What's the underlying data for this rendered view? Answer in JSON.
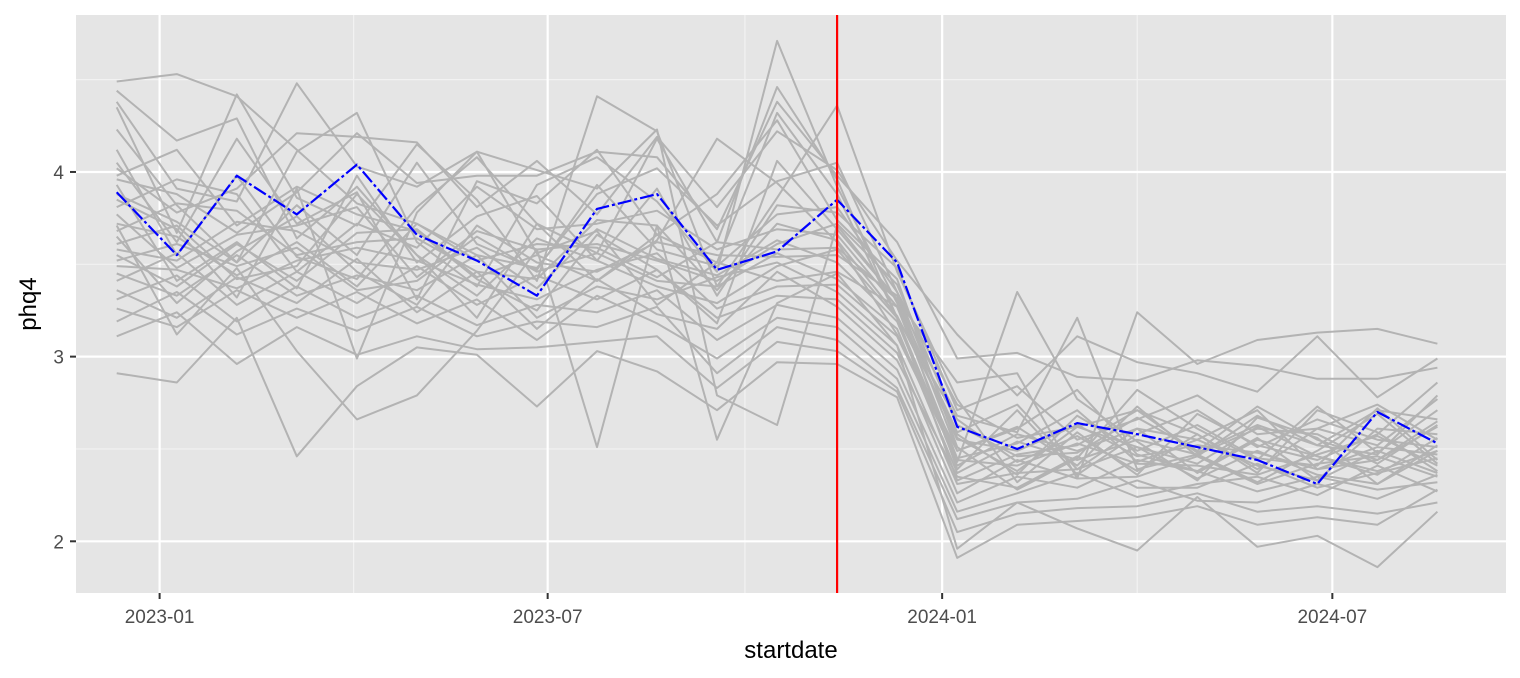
{
  "chart_data": {
    "type": "line",
    "title": "",
    "xlabel": "startdate",
    "ylabel": "phq4",
    "x_tick_labels": [
      "2023-01",
      "2023-07",
      "2024-01",
      "2024-07"
    ],
    "x_tick_dates": [
      "2023-01-01",
      "2023-07-01",
      "2024-01-01",
      "2024-07-01"
    ],
    "y_ticks": [
      2,
      3,
      4
    ],
    "ylim": [
      1.72,
      4.85
    ],
    "xlim": [
      "2022-11-23",
      "2024-09-20"
    ],
    "grid": true,
    "x": [
      "2022-12-12",
      "2023-01-09",
      "2023-02-06",
      "2023-03-06",
      "2023-04-03",
      "2023-05-01",
      "2023-05-29",
      "2023-06-26",
      "2023-07-24",
      "2023-08-21",
      "2023-09-18",
      "2023-10-16",
      "2023-11-13",
      "2023-12-11",
      "2024-01-08",
      "2024-02-05",
      "2024-03-04",
      "2024-04-01",
      "2024-04-29",
      "2024-05-27",
      "2024-06-24",
      "2024-07-22",
      "2024-08-19"
    ],
    "mean_series": {
      "name": "mean",
      "color": "#0000ff",
      "linestyle": "dashdot",
      "values": [
        3.89,
        3.55,
        3.98,
        3.77,
        4.04,
        3.66,
        3.52,
        3.33,
        3.8,
        3.88,
        3.47,
        3.57,
        3.85,
        3.51,
        2.62,
        2.5,
        2.64,
        2.58,
        2.51,
        2.44,
        2.31,
        2.7,
        2.53
      ]
    },
    "individual_series_color": "#b3b3b3",
    "individual_series": [
      [
        4.49,
        4.53,
        4.41,
        4.12,
        3.83,
        3.72,
        3.55,
        3.48,
        3.88,
        4.02,
        3.71,
        3.95,
        4.05,
        3.35,
        2.74,
        2.56,
        2.62,
        2.71,
        2.48,
        2.63,
        2.52,
        2.71,
        2.66
      ],
      [
        4.44,
        4.17,
        4.29,
        3.64,
        3.92,
        3.55,
        3.21,
        3.72,
        3.41,
        3.63,
        4.18,
        3.94,
        3.62,
        3.12,
        2.49,
        2.61,
        2.82,
        2.47,
        2.38,
        2.56,
        2.33,
        2.49,
        2.37
      ],
      [
        4.38,
        3.91,
        3.84,
        4.48,
        4.03,
        3.92,
        4.11,
        3.56,
        3.68,
        3.28,
        3.51,
        4.32,
        3.88,
        3.21,
        2.33,
        2.47,
        2.52,
        2.71,
        2.58,
        2.39,
        2.61,
        2.74,
        2.55
      ],
      [
        4.35,
        3.67,
        4.42,
        3.86,
        3.71,
        4.15,
        3.85,
        3.41,
        4.41,
        4.22,
        3.38,
        3.86,
        4.36,
        3.46,
        2.77,
        2.32,
        2.59,
        2.36,
        2.69,
        2.52,
        2.44,
        2.58,
        2.86
      ],
      [
        4.23,
        3.82,
        3.51,
        4.11,
        4.32,
        3.62,
        3.38,
        3.93,
        4.08,
        3.84,
        3.46,
        4.71,
        3.92,
        3.29,
        2.59,
        2.74,
        2.39,
        2.61,
        2.55,
        2.71,
        2.39,
        2.44,
        2.62
      ],
      [
        4.12,
        3.55,
        3.98,
        3.54,
        3.42,
        3.81,
        4.08,
        3.72,
        3.56,
        4.18,
        3.62,
        4.46,
        3.96,
        3.21,
        2.43,
        3.35,
        2.77,
        2.54,
        2.33,
        2.67,
        2.56,
        2.31,
        2.49
      ],
      [
        4.05,
        3.62,
        4.18,
        3.72,
        3.89,
        3.31,
        3.95,
        3.83,
        4.12,
        3.66,
        3.88,
        4.28,
        3.74,
        3.42,
        2.51,
        2.28,
        2.45,
        2.82,
        2.61,
        2.44,
        2.73,
        2.48,
        2.71
      ],
      [
        3.98,
        4.12,
        3.71,
        3.92,
        3.77,
        3.68,
        3.42,
        3.25,
        3.66,
        3.47,
        3.18,
        4.06,
        3.69,
        3.31,
        2.68,
        2.59,
        3.21,
        2.39,
        2.47,
        2.32,
        2.49,
        2.69,
        2.42
      ],
      [
        3.93,
        3.41,
        3.62,
        3.37,
        3.98,
        3.51,
        3.76,
        3.87,
        3.52,
        3.91,
        3.33,
        3.82,
        3.78,
        3.48,
        2.71,
        2.84,
        2.55,
        2.66,
        2.79,
        2.58,
        2.61,
        2.52,
        2.77
      ],
      [
        3.88,
        3.73,
        3.51,
        3.82,
        3.55,
        4.05,
        3.61,
        3.47,
        3.93,
        3.58,
        3.49,
        3.77,
        3.81,
        3.35,
        2.56,
        2.38,
        2.62,
        2.51,
        2.42,
        2.62,
        2.46,
        2.38,
        2.49
      ],
      [
        3.81,
        3.96,
        3.88,
        3.46,
        3.72,
        3.59,
        3.92,
        3.69,
        3.72,
        3.79,
        3.58,
        3.69,
        3.66,
        3.27,
        2.45,
        2.53,
        2.71,
        2.43,
        2.55,
        2.41,
        2.33,
        2.61,
        2.58
      ],
      [
        3.77,
        3.48,
        3.66,
        3.71,
        3.81,
        3.43,
        3.68,
        3.58,
        3.61,
        3.52,
        3.41,
        3.61,
        3.72,
        3.39,
        2.63,
        2.46,
        2.48,
        2.67,
        2.49,
        2.73,
        2.55,
        2.44,
        2.65
      ],
      [
        3.72,
        3.65,
        3.44,
        3.62,
        3.38,
        3.72,
        3.52,
        3.61,
        3.59,
        3.43,
        3.62,
        3.58,
        3.59,
        3.31,
        2.39,
        2.71,
        2.36,
        2.58,
        2.71,
        2.51,
        2.66,
        2.55,
        2.51
      ],
      [
        3.68,
        3.83,
        3.79,
        3.55,
        3.62,
        3.64,
        3.46,
        3.42,
        3.74,
        3.71,
        3.36,
        3.72,
        3.63,
        3.22,
        2.58,
        2.36,
        2.68,
        2.49,
        2.63,
        2.45,
        2.41,
        2.72,
        2.44
      ],
      [
        3.65,
        3.29,
        3.57,
        3.76,
        3.46,
        3.28,
        3.71,
        3.51,
        3.46,
        3.62,
        3.55,
        3.54,
        3.55,
        3.33,
        2.49,
        2.62,
        2.41,
        2.73,
        2.46,
        2.68,
        2.52,
        2.47,
        2.79
      ],
      [
        3.61,
        3.71,
        3.42,
        3.49,
        3.88,
        3.55,
        3.33,
        3.64,
        3.52,
        3.38,
        3.29,
        3.49,
        3.58,
        3.21,
        2.66,
        2.43,
        2.57,
        2.38,
        2.58,
        2.37,
        2.71,
        2.59,
        2.38
      ],
      [
        3.58,
        3.52,
        3.73,
        3.68,
        3.51,
        3.47,
        3.59,
        3.37,
        3.69,
        3.53,
        3.44,
        3.63,
        3.51,
        3.19,
        2.41,
        2.58,
        2.49,
        2.61,
        2.37,
        2.55,
        2.46,
        2.36,
        2.56
      ],
      [
        3.55,
        3.38,
        3.61,
        3.41,
        3.67,
        3.69,
        3.43,
        3.55,
        3.41,
        3.66,
        3.51,
        3.41,
        3.46,
        3.27,
        2.55,
        2.49,
        2.63,
        2.46,
        2.52,
        2.48,
        2.39,
        2.51,
        2.47
      ],
      [
        3.52,
        3.61,
        3.49,
        3.59,
        3.36,
        3.41,
        3.65,
        3.46,
        3.56,
        3.41,
        3.38,
        3.56,
        3.42,
        3.15,
        2.37,
        2.54,
        2.44,
        2.55,
        2.47,
        2.61,
        2.58,
        2.42,
        2.63
      ],
      [
        3.49,
        3.47,
        3.37,
        3.52,
        3.59,
        3.52,
        3.39,
        3.31,
        3.47,
        3.56,
        3.26,
        3.38,
        3.39,
        3.11,
        2.44,
        2.41,
        2.53,
        2.42,
        2.41,
        2.36,
        2.47,
        2.57,
        2.41
      ],
      [
        3.45,
        3.33,
        3.55,
        3.33,
        3.44,
        3.36,
        3.55,
        3.21,
        3.38,
        3.31,
        3.43,
        3.51,
        3.35,
        3.06,
        2.31,
        2.37,
        2.39,
        2.51,
        2.34,
        2.49,
        2.36,
        2.31,
        2.52
      ],
      [
        3.41,
        3.56,
        3.28,
        3.46,
        3.29,
        3.49,
        3.28,
        3.44,
        3.31,
        3.47,
        3.21,
        3.33,
        3.31,
        3.02,
        2.26,
        2.44,
        2.34,
        2.35,
        2.46,
        2.31,
        2.42,
        2.46,
        2.35
      ],
      [
        3.36,
        3.21,
        3.43,
        3.29,
        3.53,
        3.24,
        3.46,
        3.15,
        3.42,
        3.23,
        3.15,
        3.46,
        3.27,
        2.98,
        2.35,
        2.29,
        2.46,
        2.29,
        2.29,
        2.42,
        2.29,
        2.37,
        2.45
      ],
      [
        3.31,
        3.44,
        3.19,
        3.38,
        3.21,
        3.33,
        3.17,
        3.28,
        3.24,
        3.36,
        3.09,
        3.28,
        3.21,
        2.93,
        2.21,
        2.35,
        2.29,
        2.44,
        2.38,
        2.27,
        2.35,
        2.28,
        2.32
      ],
      [
        3.26,
        3.16,
        3.36,
        3.21,
        3.35,
        3.18,
        3.31,
        3.09,
        3.33,
        3.18,
        2.99,
        3.21,
        3.16,
        2.88,
        2.16,
        2.26,
        2.37,
        2.24,
        2.31,
        2.35,
        2.25,
        2.41,
        2.27
      ],
      [
        3.19,
        3.35,
        3.12,
        3.26,
        3.14,
        3.27,
        3.11,
        3.19,
        3.16,
        3.27,
        2.91,
        3.16,
        3.09,
        2.83,
        2.12,
        2.21,
        2.23,
        2.33,
        2.22,
        2.21,
        2.31,
        2.23,
        2.36
      ],
      [
        3.11,
        3.24,
        2.96,
        3.16,
        3.01,
        3.11,
        3.04,
        3.05,
        3.08,
        3.11,
        2.83,
        3.08,
        3.03,
        2.81,
        2.05,
        2.15,
        2.18,
        2.19,
        2.26,
        2.16,
        2.19,
        2.15,
        2.21
      ],
      [
        2.91,
        2.86,
        3.21,
        2.46,
        2.84,
        3.05,
        3.01,
        2.73,
        3.03,
        2.92,
        2.71,
        2.97,
        2.96,
        2.78,
        1.91,
        2.09,
        2.11,
        2.13,
        2.19,
        2.09,
        2.13,
        2.09,
        2.28
      ],
      [
        3.71,
        3.12,
        3.48,
        3.03,
        2.66,
        2.79,
        3.14,
        3.58,
        2.51,
        3.71,
        2.55,
        3.29,
        3.45,
        3.06,
        1.96,
        2.21,
        2.07,
        1.95,
        2.24,
        1.97,
        2.03,
        1.86,
        2.16
      ],
      [
        3.85,
        3.69,
        3.32,
        3.91,
        2.99,
        3.78,
        4.11,
        4.01,
        3.91,
        4.23,
        2.79,
        2.63,
        3.71,
        3.31,
        2.86,
        2.91,
        2.34,
        3.24,
        2.96,
        3.09,
        3.13,
        3.15,
        3.07
      ],
      [
        4.02,
        3.78,
        3.91,
        4.21,
        4.19,
        4.16,
        3.81,
        4.06,
        3.77,
        4.19,
        3.81,
        4.22,
        4.01,
        3.52,
        3.12,
        2.79,
        3.11,
        2.97,
        2.91,
        2.81,
        3.11,
        2.78,
        2.99
      ],
      [
        3.96,
        3.88,
        3.67,
        3.89,
        4.21,
        3.94,
        3.98,
        3.98,
        4.11,
        4.08,
        3.69,
        4.38,
        3.98,
        3.62,
        2.99,
        3.02,
        2.89,
        2.87,
        2.98,
        2.95,
        2.88,
        2.88,
        2.94
      ]
    ],
    "reference_line": {
      "x": "2023-11-13",
      "color": "#ff0000"
    }
  }
}
